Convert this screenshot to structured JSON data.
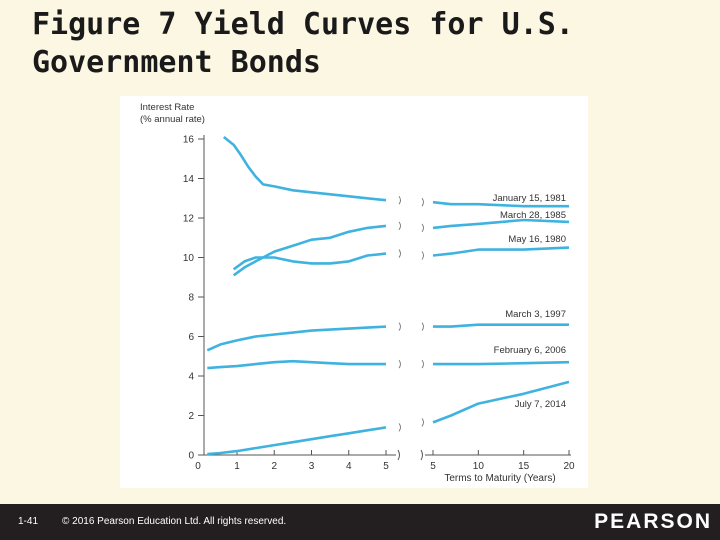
{
  "slide": {
    "title": "Figure 7 Yield Curves for U.S.\nGovernment Bonds",
    "slide_number": "1-41",
    "copyright": "© 2016 Pearson Education Ltd. All rights reserved.",
    "brand": "PEARSON"
  },
  "colors": {
    "line": "#3fb3df",
    "axis": "#555555",
    "footer": "#231f20",
    "background": "#fbf7e2"
  },
  "chart_data": {
    "type": "line",
    "ylabel": "Interest Rate\n(% annual rate)",
    "xlabel": "Terms to Maturity (Years)",
    "ylim": [
      0,
      16
    ],
    "yticks": [
      "0",
      "2",
      "4",
      "6",
      "8",
      "10",
      "12",
      "14",
      "16"
    ],
    "xticks_left": [
      "1",
      "2",
      "3",
      "4",
      "5"
    ],
    "xticks_right": [
      "5",
      "10",
      "15",
      "20"
    ],
    "x_axis_break": "between 5 and 5 (scale changes)",
    "grid": false,
    "legend": "labels beside each curve on the right",
    "series": [
      {
        "name": "January 15, 1981",
        "left": {
          "x": [
            0.6,
            0.75,
            0.9,
            1.1,
            1.3,
            1.5,
            1.7,
            2,
            2.5,
            3,
            3.5,
            4,
            4.5,
            5
          ],
          "y": [
            16.1,
            15.9,
            15.7,
            15.2,
            14.6,
            14.1,
            13.7,
            13.6,
            13.4,
            13.3,
            13.2,
            13.1,
            13.0,
            12.9
          ]
        },
        "right": {
          "x": [
            5,
            7,
            10,
            15,
            20
          ],
          "y": [
            12.8,
            12.7,
            12.7,
            12.6,
            12.6
          ]
        }
      },
      {
        "name": "March 28, 1985",
        "left": {
          "x": [
            0.9,
            1.2,
            1.5,
            2,
            2.5,
            3,
            3.5,
            4,
            4.5,
            5
          ],
          "y": [
            9.1,
            9.5,
            9.8,
            10.3,
            10.6,
            10.9,
            11.0,
            11.3,
            11.5,
            11.6
          ]
        },
        "right": {
          "x": [
            5,
            7,
            10,
            15,
            20
          ],
          "y": [
            11.5,
            11.6,
            11.7,
            11.9,
            11.8
          ]
        }
      },
      {
        "name": "May 16, 1980",
        "left": {
          "x": [
            0.9,
            1.2,
            1.5,
            2,
            2.5,
            3,
            3.5,
            4,
            4.5,
            5
          ],
          "y": [
            9.4,
            9.8,
            10.0,
            10.0,
            9.8,
            9.7,
            9.7,
            9.8,
            10.1,
            10.2
          ]
        },
        "right": {
          "x": [
            5,
            7,
            10,
            15,
            20
          ],
          "y": [
            10.1,
            10.2,
            10.4,
            10.4,
            10.5
          ]
        }
      },
      {
        "name": "March 3, 1997",
        "left": {
          "x": [
            0.1,
            0.5,
            1,
            1.5,
            2,
            2.5,
            3,
            3.5,
            4,
            4.5,
            5
          ],
          "y": [
            5.3,
            5.6,
            5.8,
            6.0,
            6.1,
            6.2,
            6.3,
            6.35,
            6.4,
            6.45,
            6.5
          ]
        },
        "right": {
          "x": [
            5,
            7,
            10,
            15,
            20
          ],
          "y": [
            6.5,
            6.5,
            6.6,
            6.6,
            6.6
          ]
        }
      },
      {
        "name": "February 6, 2006",
        "left": {
          "x": [
            0.1,
            0.5,
            1,
            1.5,
            2,
            2.5,
            3,
            3.5,
            4,
            4.5,
            5
          ],
          "y": [
            4.4,
            4.45,
            4.5,
            4.6,
            4.7,
            4.75,
            4.7,
            4.65,
            4.6,
            4.6,
            4.6
          ]
        },
        "right": {
          "x": [
            5,
            7,
            10,
            15,
            20
          ],
          "y": [
            4.6,
            4.6,
            4.6,
            4.65,
            4.7
          ]
        }
      },
      {
        "name": "July 7, 2014",
        "left": {
          "x": [
            0.1,
            0.5,
            1,
            1.5,
            2,
            2.5,
            3,
            3.5,
            4,
            4.5,
            5
          ],
          "y": [
            0.05,
            0.1,
            0.2,
            0.35,
            0.5,
            0.65,
            0.8,
            0.95,
            1.1,
            1.25,
            1.4
          ]
        },
        "right": {
          "x": [
            5,
            7,
            10,
            15,
            20
          ],
          "y": [
            1.65,
            2.0,
            2.6,
            3.1,
            3.7
          ]
        }
      }
    ]
  }
}
